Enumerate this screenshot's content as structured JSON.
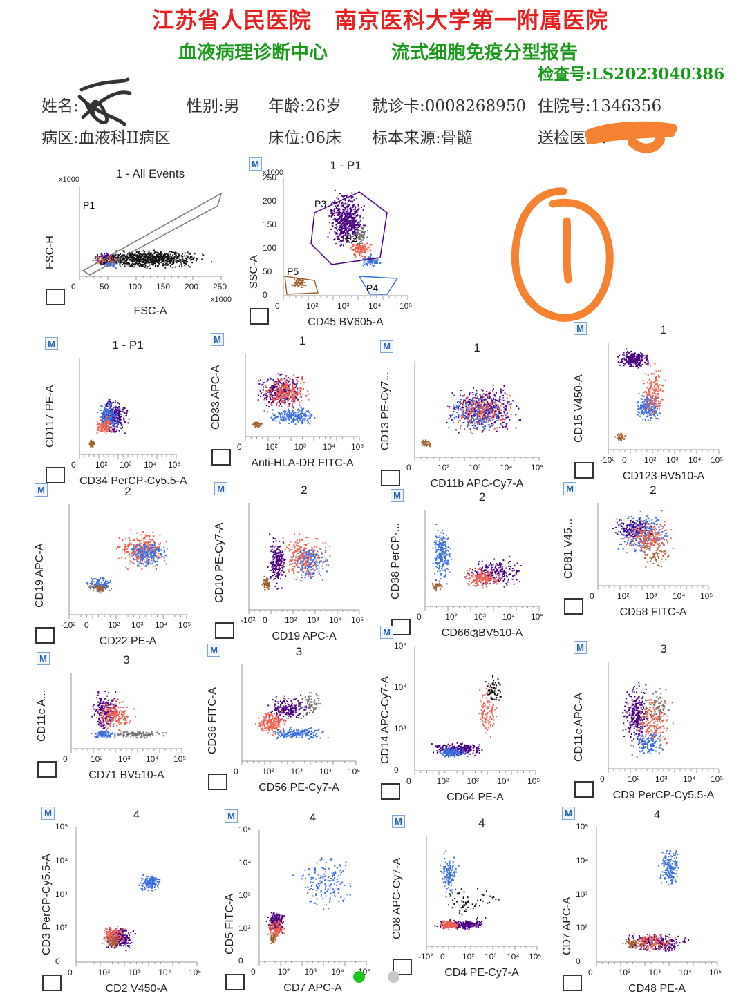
{
  "header": {
    "hospital_line": "江苏省人民医院　南京医科大学第一附属医院",
    "department": "血液病理诊断中心",
    "report_title": "流式细胞免疫分型报告",
    "exam_no": "检查号:LS2023040386"
  },
  "patient": {
    "name_label": "姓名:",
    "gender": "性别:男",
    "age": "年龄:26岁",
    "card": "就诊卡:0008268950",
    "inpatient_no": "住院号:1346356",
    "ward": "病区:血液科II病区",
    "bed": "床位:06床",
    "specimen": "标本来源:骨髓",
    "doctor_label": "送检医师:"
  },
  "colors": {
    "red": "#e8201f",
    "green": "#1a9a1a",
    "purple": "#4b0082",
    "salmon": "#f0604c",
    "blue": "#3a6fe0",
    "gray": "#707070",
    "brown": "#a0622d",
    "black": "#111111",
    "orange_mark": "#f58231"
  },
  "plots": [
    {
      "title": "1 - All Events",
      "x": "FSC-A",
      "y": "FSC-H",
      "kind": "scatter_fsc",
      "m": false,
      "ticks_x": [
        "0",
        "50",
        "100",
        "150",
        "200",
        "250"
      ],
      "ticks_y": [
        "x1000"
      ],
      "x_unit": "x1000",
      "gate": "P1"
    },
    {
      "title": "1 - P1",
      "x": "CD45 BV605-A",
      "y": "SSC-A",
      "kind": "cd45",
      "m": true,
      "ticks_x": [
        "0",
        "10²",
        "10³",
        "10⁴",
        "10⁵"
      ],
      "ticks_y": [
        "0",
        "50",
        "100",
        "150",
        "200",
        "250"
      ],
      "y_unit": "x1000",
      "gates": [
        "P3",
        "P2",
        "P5",
        "P4"
      ]
    },
    {
      "title": "1 - P1",
      "x": "CD34 PerCP-Cy5.5-A",
      "y": "CD117 PE-A",
      "m": true,
      "ticks_x": [
        "0",
        "10²",
        "10³",
        "10⁴",
        "10⁵"
      ]
    },
    {
      "title": "1",
      "x": "Anti-HLA-DR FITC-A",
      "y": "CD33 APC-A",
      "m": true,
      "ticks_x": [
        "0",
        "10²",
        "10³",
        "10⁴",
        "10⁵"
      ]
    },
    {
      "title": "1",
      "x": "CD11b APC-Cy7-A",
      "y": "CD13 PE-Cy7...",
      "m": true,
      "ticks_x": [
        "0",
        "10²",
        "10³",
        "10⁴",
        "10⁵"
      ]
    },
    {
      "title": "1",
      "x": "CD123 BV510-A",
      "y": "CD15 V450-A",
      "m": true,
      "ticks_x": [
        "-10²",
        "0",
        "10²",
        "10³",
        "10⁴",
        "10⁵"
      ]
    },
    {
      "title": "2",
      "x": "CD22 PE-A",
      "y": "CD19 APC-A",
      "m": true,
      "ticks_x": [
        "-10²",
        "0",
        "10²",
        "10³",
        "10⁴",
        "10⁵"
      ]
    },
    {
      "title": "2",
      "x": "CD19 APC-A",
      "y": "CD10 PE-Cy7-A",
      "m": true,
      "ticks_x": [
        "-10²",
        "0",
        "10²",
        "10³",
        "10⁴",
        "10⁵"
      ]
    },
    {
      "title": "2",
      "x": "CD66c BV510-A",
      "y": "CD38 PerCP-...",
      "m": true,
      "ticks_x": [
        "0",
        "10²",
        "10³",
        "10⁴",
        "10⁵"
      ]
    },
    {
      "title": "2",
      "x": "CD58 FITC-A",
      "y": "CD81 V45...",
      "m": true,
      "ticks_x": [
        "0",
        "10²",
        "10³",
        "10⁴",
        "10⁵"
      ]
    },
    {
      "title": "3",
      "x": "CD71 BV510-A",
      "y": "CD11c A...",
      "m": true,
      "ticks_x": [
        "0",
        "10²",
        "10³",
        "10⁴",
        "10⁵"
      ]
    },
    {
      "title": "3",
      "x": "CD56 PE-Cy7-A",
      "y": "CD36 FITC-A",
      "m": true,
      "ticks_x": [
        "0",
        "10²",
        "10³",
        "10⁴",
        "10⁵"
      ]
    },
    {
      "title": "3",
      "x": "CD64 PE-A",
      "y": "CD14 APC-Cy7-A",
      "m": true,
      "ticks_x": [
        "0",
        "10²",
        "10³",
        "10⁴",
        "10⁵"
      ],
      "ticks_y": [
        "0",
        "10³",
        "10⁴",
        "10⁵"
      ]
    },
    {
      "title": "3",
      "x": "CD9 PerCP-Cy5.5-A",
      "y": "CD11c APC-A",
      "m": true,
      "ticks_x": [
        "0",
        "10²",
        "10³",
        "10⁴",
        "10⁵"
      ]
    },
    {
      "title": "4",
      "x": "CD2 V450-A",
      "y": "CD3 PerCP-Cy5.5-A",
      "m": true,
      "ticks_x": [
        "0",
        "10²",
        "10³",
        "10⁴",
        "10⁵"
      ],
      "ticks_y": [
        "0",
        "10²",
        "10³",
        "10⁴",
        "10⁵"
      ]
    },
    {
      "title": "4",
      "x": "CD7 APC-A",
      "y": "CD5 FITC-A",
      "m": true,
      "ticks_x": [
        "0",
        "10²",
        "10³",
        "10⁴",
        "10⁵"
      ],
      "ticks_y": [
        "0",
        "10²",
        "10³",
        "10⁴",
        "10⁵"
      ]
    },
    {
      "title": "4",
      "x": "CD4 PE-Cy7-A",
      "y": "CD8 APC-Cy7-A",
      "m": true,
      "ticks_x": [
        "-10²",
        "0",
        "10²",
        "10³",
        "10⁴",
        "10⁵"
      ]
    },
    {
      "title": "4",
      "x": "CD48 PE-A",
      "y": "CD7 APC-A",
      "m": true,
      "ticks_x": [
        "0",
        "10²",
        "10³",
        "10⁴",
        "10⁵"
      ],
      "ticks_y": [
        "0",
        "10²",
        "10³",
        "10⁴",
        "10⁵"
      ]
    }
  ],
  "m_label": "M",
  "pager": {
    "pages": 2,
    "current": 1
  }
}
